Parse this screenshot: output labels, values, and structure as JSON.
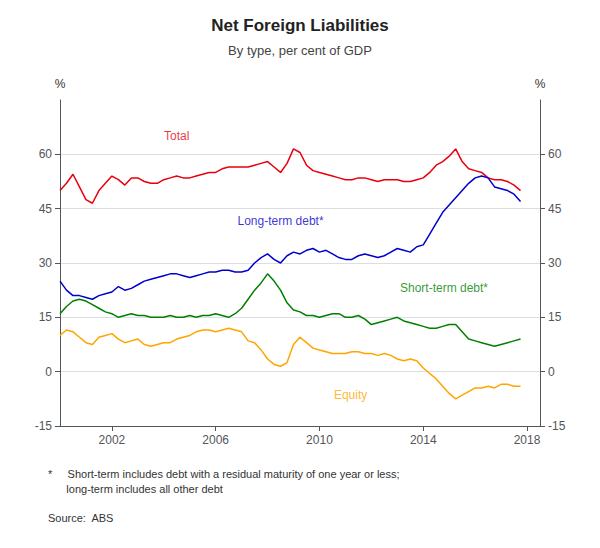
{
  "chart_data": {
    "type": "line",
    "title": "Net Foreign Liabilities",
    "subtitle": "By type, per cent of GDP",
    "ylabel": "%",
    "y2label": "%",
    "footnote": "*     Short-term includes debt with a residual maturity of one year or less;\n      long-term includes all other debt",
    "source": "Source:  ABS",
    "grid": true,
    "xlim": [
      2000.0,
      2018.5
    ],
    "xticks": [
      2002,
      2006,
      2010,
      2014,
      2018
    ],
    "ylim": [
      -15,
      75
    ],
    "yticks": [
      -15,
      0,
      15,
      30,
      45,
      60
    ],
    "y2lim": [
      -15,
      75
    ],
    "y2ticks": [
      -15,
      0,
      15,
      30,
      45,
      60
    ],
    "x": [
      2000.0,
      2000.25,
      2000.5,
      2000.75,
      2001.0,
      2001.25,
      2001.5,
      2001.75,
      2002.0,
      2002.25,
      2002.5,
      2002.75,
      2003.0,
      2003.25,
      2003.5,
      2003.75,
      2004.0,
      2004.25,
      2004.5,
      2004.75,
      2005.0,
      2005.25,
      2005.5,
      2005.75,
      2006.0,
      2006.25,
      2006.5,
      2006.75,
      2007.0,
      2007.25,
      2007.5,
      2007.75,
      2008.0,
      2008.25,
      2008.5,
      2008.75,
      2009.0,
      2009.25,
      2009.5,
      2009.75,
      2010.0,
      2010.25,
      2010.5,
      2010.75,
      2011.0,
      2011.25,
      2011.5,
      2011.75,
      2012.0,
      2012.25,
      2012.5,
      2012.75,
      2013.0,
      2013.25,
      2013.5,
      2013.75,
      2014.0,
      2014.25,
      2014.5,
      2014.75,
      2015.0,
      2015.25,
      2015.5,
      2015.75,
      2016.0,
      2016.25,
      2016.5,
      2016.75,
      2017.0,
      2017.25,
      2017.5,
      2017.75
    ],
    "series": [
      {
        "name": "Total",
        "color": "#e8000d",
        "values": [
          50.0,
          52.0,
          54.5,
          51.0,
          47.5,
          46.5,
          50.0,
          52.0,
          54.0,
          53.0,
          51.5,
          53.5,
          53.5,
          52.5,
          52.0,
          52.0,
          53.0,
          53.5,
          54.0,
          53.5,
          53.5,
          54.0,
          54.5,
          55.0,
          55.0,
          56.0,
          56.5,
          56.5,
          56.5,
          56.5,
          57.0,
          57.5,
          58.0,
          56.5,
          55.0,
          57.5,
          61.5,
          60.5,
          57.0,
          55.5,
          55.0,
          54.5,
          54.0,
          53.5,
          53.0,
          53.0,
          53.5,
          53.5,
          53.0,
          52.5,
          53.0,
          53.0,
          53.0,
          52.5,
          52.5,
          53.0,
          53.5,
          55.0,
          57.0,
          58.0,
          59.5,
          61.5,
          58.0,
          56.0,
          55.5,
          55.0,
          53.5,
          53.0,
          53.0,
          52.5,
          51.5,
          50.0
        ]
      },
      {
        "name": "Long-term debt*",
        "color": "#0000cc",
        "values": [
          25.0,
          22.5,
          21.0,
          21.0,
          20.5,
          20.0,
          21.0,
          21.5,
          22.0,
          23.5,
          22.5,
          23.0,
          24.0,
          25.0,
          25.5,
          26.0,
          26.5,
          27.0,
          27.0,
          26.5,
          26.0,
          26.5,
          27.0,
          27.5,
          27.5,
          28.0,
          28.0,
          27.5,
          27.5,
          28.0,
          30.0,
          31.5,
          32.5,
          31.0,
          30.0,
          32.0,
          33.0,
          32.5,
          33.5,
          34.0,
          33.0,
          33.5,
          32.5,
          31.5,
          31.0,
          31.0,
          32.0,
          32.5,
          32.0,
          31.5,
          32.0,
          33.0,
          34.0,
          33.5,
          33.0,
          34.5,
          35.0,
          38.0,
          41.0,
          44.0,
          46.0,
          48.0,
          50.0,
          52.0,
          53.5,
          54.0,
          53.5,
          51.0,
          50.5,
          50.0,
          49.0,
          47.0
        ]
      },
      {
        "name": "Short-term debt*",
        "color": "#008000",
        "values": [
          16.0,
          18.0,
          19.5,
          20.0,
          19.5,
          18.5,
          17.5,
          16.5,
          16.0,
          15.0,
          15.5,
          16.0,
          15.5,
          15.5,
          15.0,
          15.0,
          15.0,
          15.5,
          15.0,
          15.0,
          15.5,
          15.0,
          15.5,
          15.5,
          16.0,
          15.5,
          15.0,
          16.0,
          17.5,
          20.0,
          22.5,
          24.5,
          27.0,
          25.0,
          22.5,
          19.0,
          17.0,
          16.5,
          15.5,
          15.5,
          15.0,
          15.5,
          16.0,
          16.0,
          15.0,
          15.0,
          15.5,
          14.5,
          13.0,
          13.5,
          14.0,
          14.5,
          15.0,
          14.0,
          13.5,
          13.0,
          12.5,
          12.0,
          12.0,
          12.5,
          13.0,
          13.0,
          11.0,
          9.0,
          8.5,
          8.0,
          7.5,
          7.0,
          7.5,
          8.0,
          8.5,
          9.0
        ]
      },
      {
        "name": "Equity",
        "color": "#ffa500",
        "values": [
          10.0,
          11.5,
          11.0,
          9.5,
          8.0,
          7.5,
          9.5,
          10.0,
          10.5,
          9.0,
          8.0,
          8.5,
          9.0,
          7.5,
          7.0,
          7.5,
          8.0,
          8.0,
          9.0,
          9.5,
          10.0,
          11.0,
          11.5,
          11.5,
          11.0,
          11.5,
          12.0,
          11.5,
          11.0,
          8.5,
          8.0,
          6.0,
          3.5,
          2.0,
          1.5,
          2.5,
          7.5,
          9.5,
          8.0,
          6.5,
          6.0,
          5.5,
          5.0,
          5.0,
          5.0,
          5.5,
          5.5,
          5.0,
          5.0,
          4.5,
          5.0,
          4.5,
          3.5,
          3.0,
          3.5,
          3.0,
          1.0,
          -0.5,
          -2.0,
          -4.0,
          -6.0,
          -7.5,
          -6.5,
          -5.5,
          -4.5,
          -4.5,
          -4.0,
          -4.5,
          -3.5,
          -3.5,
          -4.0,
          -4.0
        ]
      }
    ],
    "annotations": [
      {
        "text": "Total",
        "x": 2004.5,
        "y": 63.5,
        "color": "#e8000d"
      },
      {
        "text": "Long-term debt*",
        "x": 2008.5,
        "y": 40.0,
        "color": "#0000cc"
      },
      {
        "text": "Short-term debt*",
        "x": 2014.8,
        "y": 21.5,
        "color": "#008000"
      },
      {
        "text": "Equity",
        "x": 2011.2,
        "y": -8.0,
        "color": "#ffa500"
      }
    ]
  }
}
